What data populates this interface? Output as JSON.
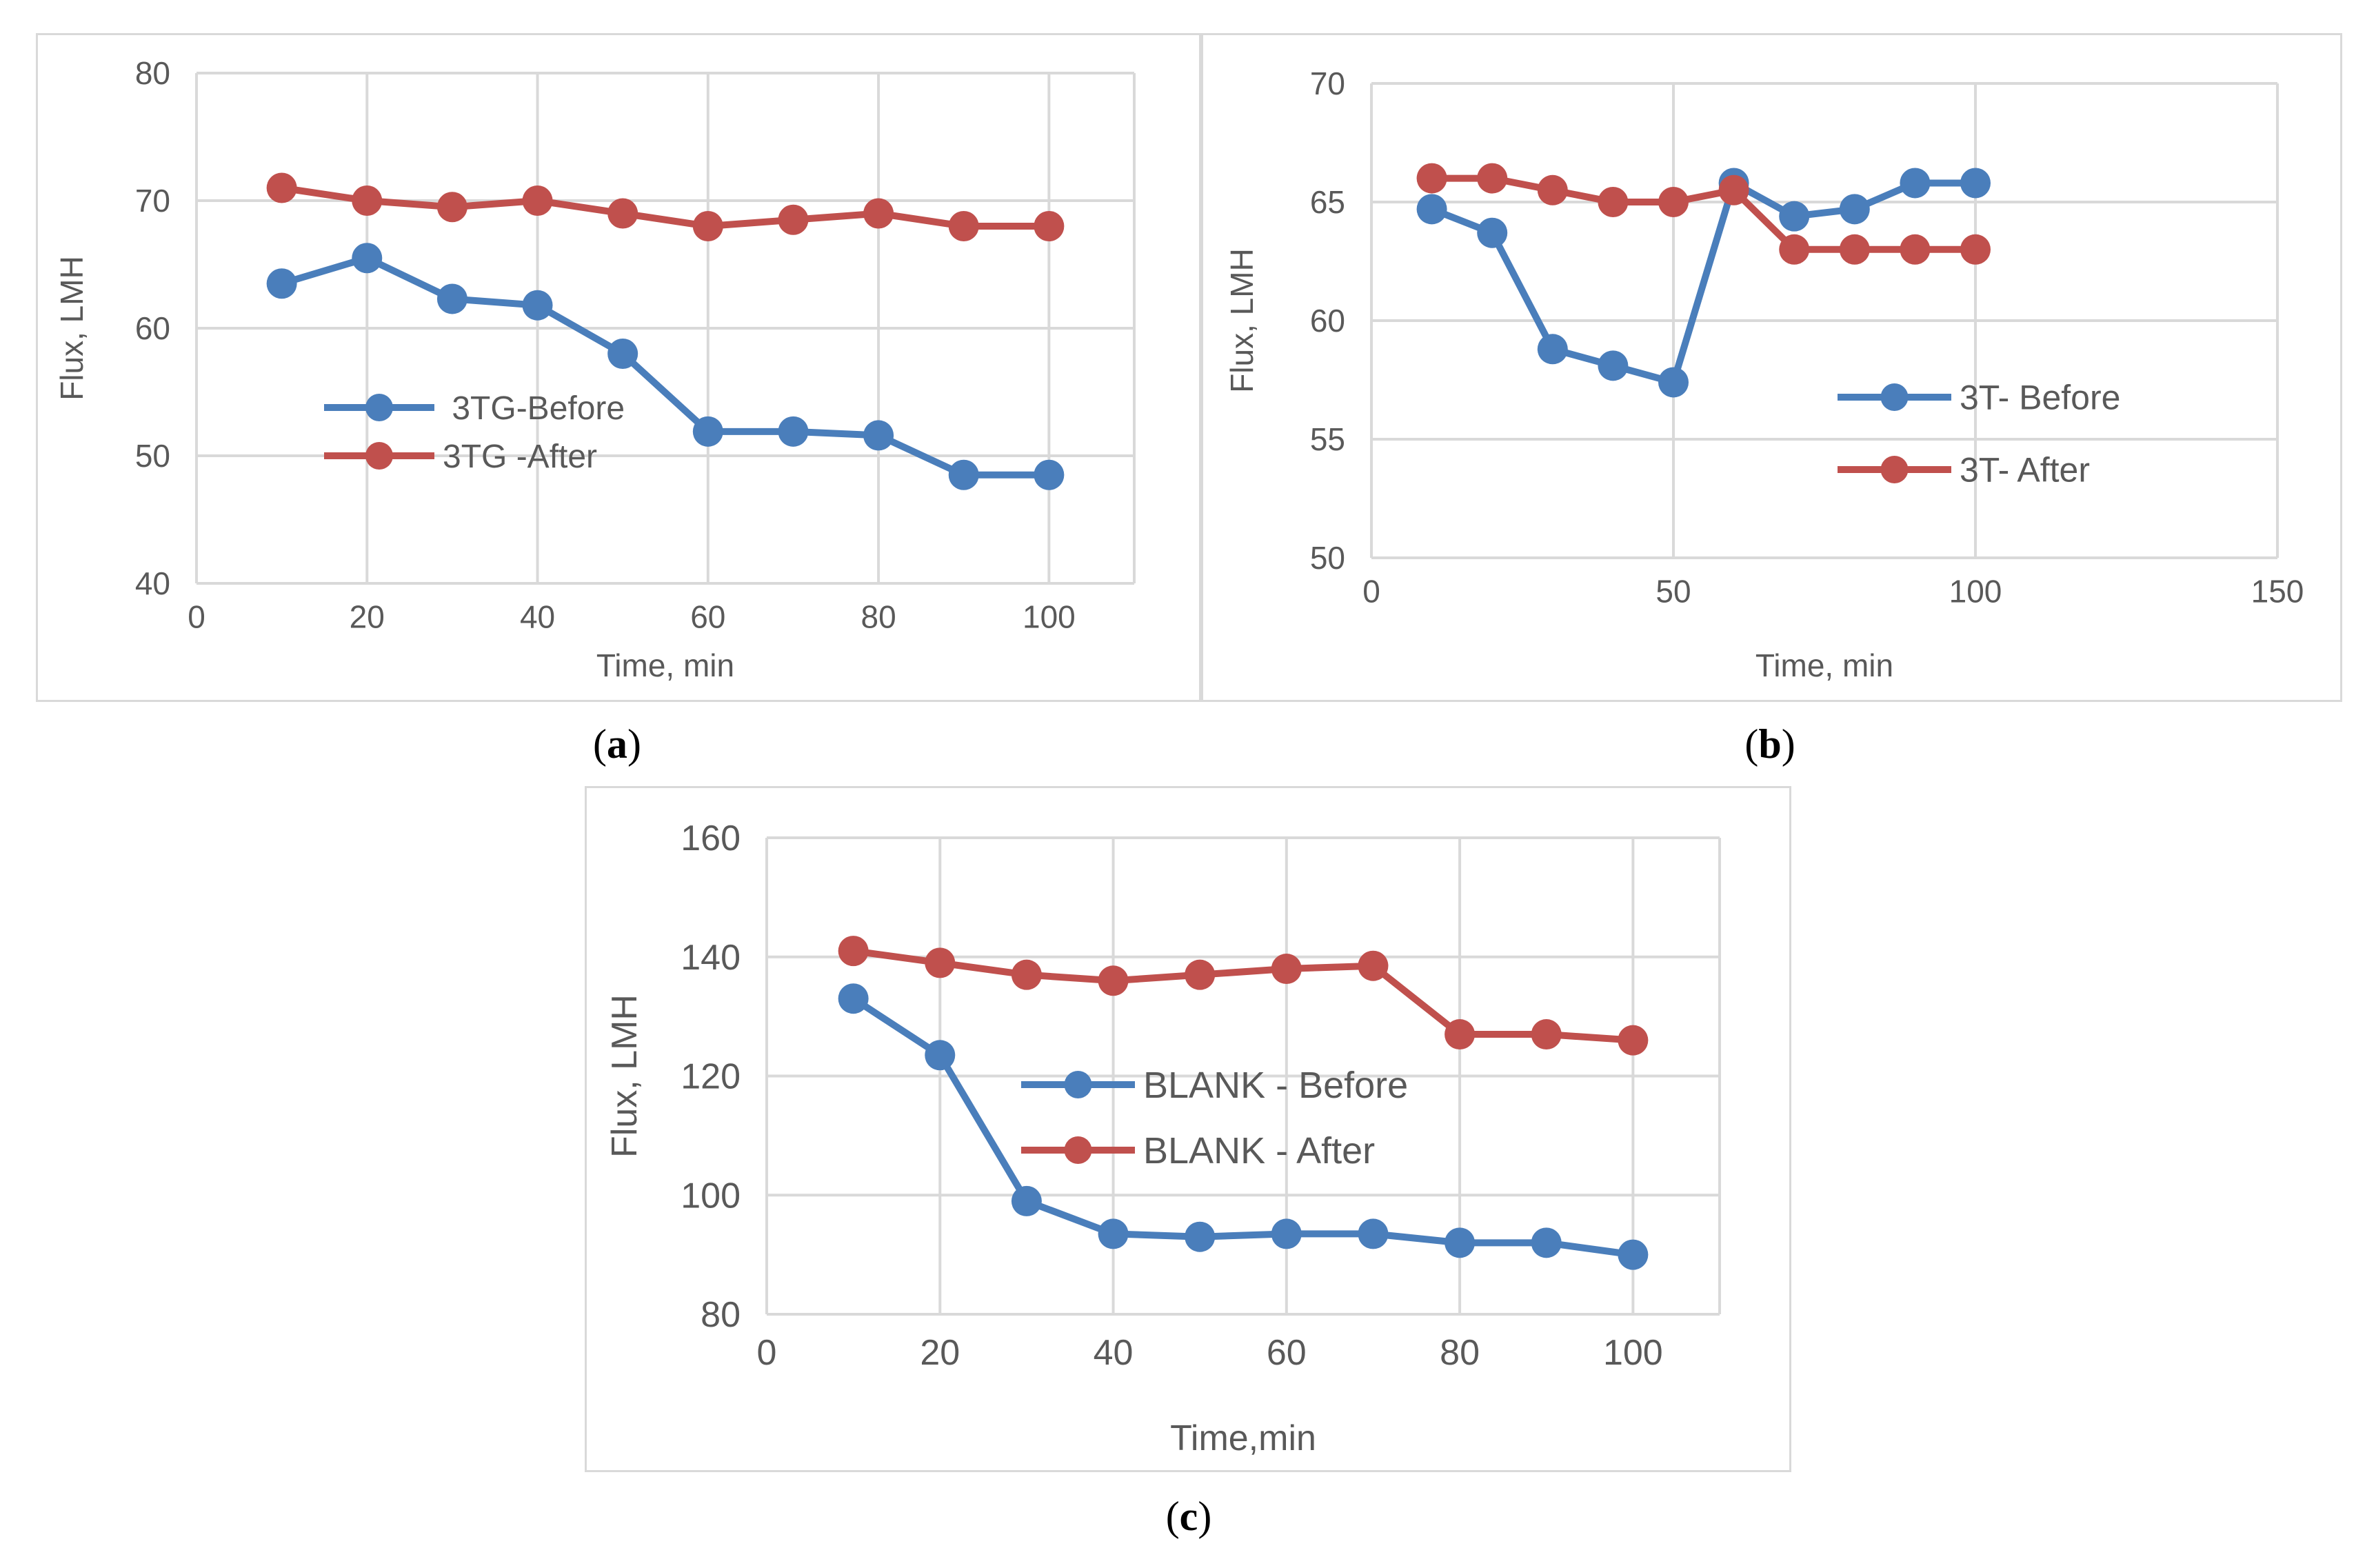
{
  "chart_data": [
    {
      "type": "line",
      "panel_label": "a",
      "xlabel": "Time, min",
      "ylabel": "Flux, LMH",
      "xlim": [
        0,
        110
      ],
      "ylim": [
        40,
        80
      ],
      "x_ticks": [
        0,
        20,
        40,
        60,
        80,
        100
      ],
      "y_ticks": [
        40,
        50,
        60,
        70,
        80
      ],
      "grid": true,
      "legend_position": "center-left",
      "series": [
        {
          "name": " 3TG-Before",
          "color": "#4a7ebb",
          "x": [
            10,
            20,
            30,
            40,
            50,
            60,
            70,
            80,
            90,
            100
          ],
          "y": [
            63.5,
            65.5,
            62.3,
            61.8,
            58,
            51.9,
            51.9,
            51.6,
            48.5,
            48.5
          ]
        },
        {
          "name": "3TG -After",
          "color": "#c0504d",
          "x": [
            10,
            20,
            30,
            40,
            50,
            60,
            70,
            80,
            90,
            100
          ],
          "y": [
            71,
            70,
            69.5,
            70,
            69,
            68,
            68.5,
            69,
            68,
            68
          ]
        }
      ]
    },
    {
      "type": "line",
      "panel_label": "b",
      "xlabel": "Time, min",
      "ylabel": "Flux, LMH",
      "xlim": [
        0,
        150
      ],
      "ylim": [
        50,
        70
      ],
      "x_ticks": [
        0,
        50,
        100,
        150
      ],
      "y_ticks": [
        50,
        55,
        60,
        65,
        70
      ],
      "grid": true,
      "legend_position": "center-right",
      "series": [
        {
          "name": "3T- Before",
          "color": "#4a7ebb",
          "x": [
            10,
            20,
            30,
            40,
            50,
            60,
            70,
            80,
            90,
            100
          ],
          "y": [
            64.7,
            63.7,
            58.8,
            58.1,
            57.4,
            65.8,
            64.4,
            64.7,
            65.8,
            65.8
          ]
        },
        {
          "name": "3T- After",
          "color": "#c0504d",
          "x": [
            10,
            20,
            30,
            40,
            50,
            60,
            70,
            80,
            90,
            100
          ],
          "y": [
            66,
            66,
            65.5,
            65,
            65,
            65.5,
            63,
            63,
            63,
            63
          ]
        }
      ]
    },
    {
      "type": "line",
      "panel_label": "c",
      "xlabel": "Time,min",
      "ylabel": "Flux, LMH",
      "xlim": [
        0,
        110
      ],
      "ylim": [
        80,
        160
      ],
      "x_ticks": [
        0,
        20,
        40,
        60,
        80,
        100
      ],
      "y_ticks": [
        80,
        100,
        120,
        140,
        160
      ],
      "grid": true,
      "legend_position": "center",
      "series": [
        {
          "name": "BLANK - Before",
          "color": "#4a7ebb",
          "x": [
            10,
            20,
            30,
            40,
            50,
            60,
            70,
            80,
            90,
            100
          ],
          "y": [
            133,
            123.5,
            99,
            93.5,
            93,
            93.5,
            93.5,
            92,
            92,
            90
          ]
        },
        {
          "name": "BLANK - After",
          "color": "#c0504d",
          "x": [
            10,
            20,
            30,
            40,
            50,
            60,
            70,
            80,
            90,
            100
          ],
          "y": [
            141,
            139,
            137,
            136,
            137,
            138,
            138.5,
            127,
            127,
            126
          ]
        }
      ]
    }
  ],
  "captions": {
    "a": {
      "open": "(",
      "letter": "a",
      "close": ")"
    },
    "b": {
      "open": "(",
      "letter": "b",
      "close": ")"
    },
    "c": {
      "open": "(",
      "letter": "c",
      "close": ")"
    }
  }
}
